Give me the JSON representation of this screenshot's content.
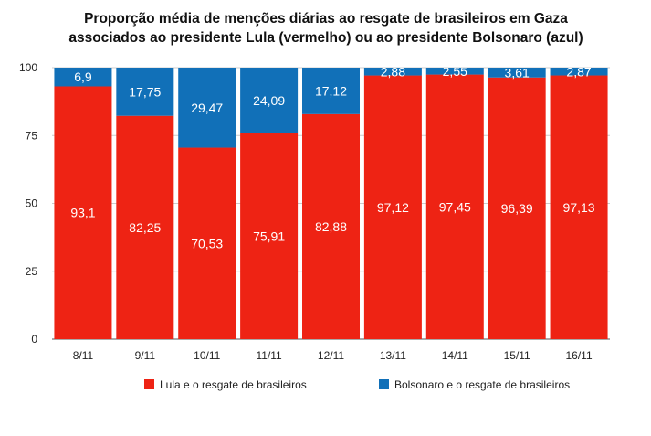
{
  "chart_data": {
    "type": "bar",
    "stacked": true,
    "title": [
      "Proporção média de menções diárias ao resgate de brasileiros em Gaza",
      "associados ao presidente Lula (vermelho) ou ao presidente Bolsonaro (azul)"
    ],
    "categories": [
      "8/11",
      "9/11",
      "10/11",
      "11/11",
      "12/11",
      "13/11",
      "14/11",
      "15/11",
      "16/11"
    ],
    "series": [
      {
        "name": "Lula e o resgate de brasileiros",
        "color": "#EE2314",
        "values": [
          93.1,
          82.25,
          70.53,
          75.91,
          82.88,
          97.12,
          97.45,
          96.39,
          97.13
        ],
        "labels": [
          "93,1",
          "82,25",
          "70,53",
          "75,91",
          "82,88",
          "97,12",
          "97,45",
          "96,39",
          "97,13"
        ]
      },
      {
        "name": "Bolsonaro e o resgate de brasileiros",
        "color": "#1170B8",
        "values": [
          6.9,
          17.75,
          29.47,
          24.09,
          17.12,
          2.88,
          2.55,
          3.61,
          2.87
        ],
        "labels": [
          "6,9",
          "17,75",
          "29,47",
          "24,09",
          "17,12",
          "2,88",
          "2,55",
          "3,61",
          "2,87"
        ]
      }
    ],
    "ylim": [
      0,
      100
    ],
    "yticks": [
      "0",
      "25",
      "50",
      "75",
      "100"
    ],
    "grid": true,
    "legend": "bottom"
  }
}
